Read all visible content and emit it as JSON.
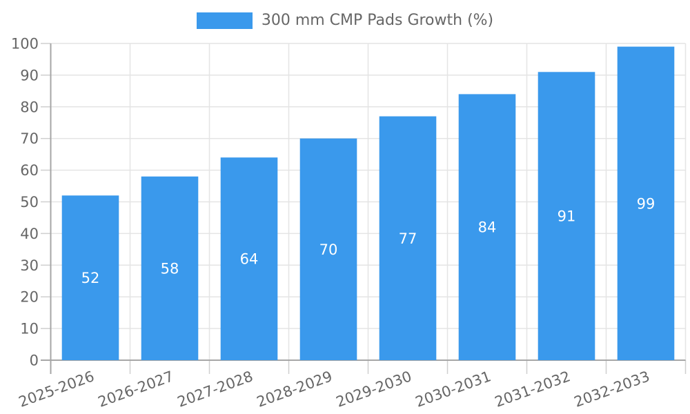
{
  "chart_data": {
    "type": "bar",
    "title": "",
    "legend": "300 mm CMP Pads Growth (%)",
    "legend_position": "top",
    "categories": [
      "2025-2026",
      "2026-2027",
      "2027-2028",
      "2028-2029",
      "2029-2030",
      "2030-2031",
      "2031-2032",
      "2032-2033"
    ],
    "values": [
      52,
      58,
      64,
      70,
      77,
      84,
      91,
      99
    ],
    "xlabel": "",
    "ylabel": "",
    "ylim": [
      0,
      100
    ],
    "ytick_step": 10,
    "yticks": [
      0,
      10,
      20,
      30,
      40,
      50,
      60,
      70,
      80,
      90,
      100
    ],
    "grid": true,
    "x_label_rotation_deg": -20,
    "bar_color": "#3A99EC",
    "value_label_color": "#FFFFFF",
    "axis_text_color": "#666666",
    "gridline_color": "#E4E4E4",
    "tick_color": "#CFCFCF",
    "axis_line_color": "#A6A6A6"
  }
}
